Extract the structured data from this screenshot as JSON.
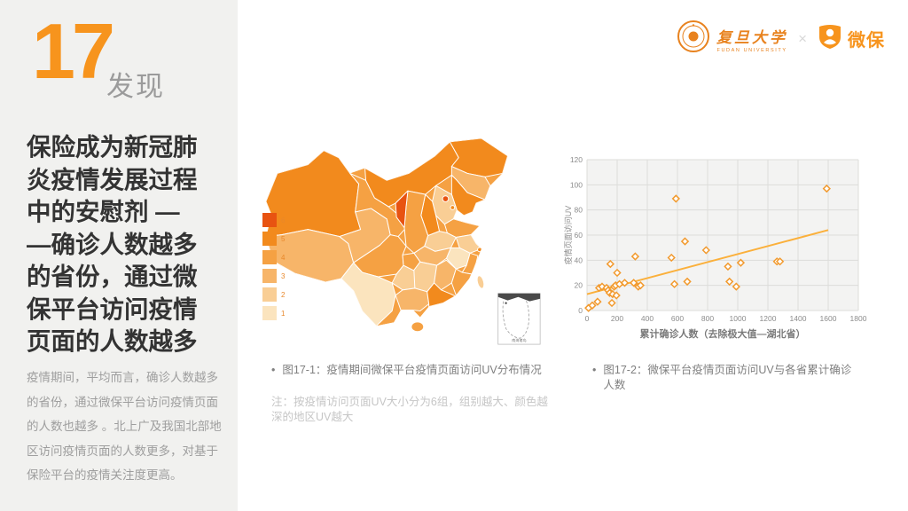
{
  "slide": {
    "number": "17",
    "number_label": "发现",
    "heading": "保险成为新冠肺\n炎疫情发展过程\n中的安慰剂 —\n—确诊人数越多\n的省份，通过微\n保平台访问疫情\n页面的人数越多",
    "body": "疫情期间，平均而言，确诊人数越多的省份，通过微保平台访问疫情页面的人数也越多 。北上广及我国北部地区访问疫情页面的人数更多，对基于保险平台的疫情关注度更高。"
  },
  "header": {
    "fudan_logo_text": "复旦大学",
    "fudan_logo_subtext": "FUDAN UNIVERSITY",
    "separator": "×",
    "wesure_logo_text": "微保"
  },
  "map": {
    "legend": {
      "labels": [
        "6",
        "5",
        "4",
        "3",
        "2",
        "1"
      ]
    },
    "scale_colors": [
      "#FBE4BE",
      "#F9CE95",
      "#F7B569",
      "#F5A143",
      "#F28A1D",
      "#E85311"
    ],
    "inset_label": "南海诸岛",
    "caption": "图17-1：疫情期间微保平台疫情页面访问UV分布情况",
    "note": "注：按疫情访问页面UV大小分为6组，组别越大、颜色越深的地区UV越大",
    "regions": [
      {
        "id": "xinjiang",
        "group": 5
      },
      {
        "id": "tibet",
        "group": 3
      },
      {
        "id": "qinghai",
        "group": 3
      },
      {
        "id": "gansu",
        "group": 4
      },
      {
        "id": "neimenggu",
        "group": 5
      },
      {
        "id": "heilongjiang",
        "group": 5
      },
      {
        "id": "jilin",
        "group": 3
      },
      {
        "id": "liaoning",
        "group": 5
      },
      {
        "id": "hebei",
        "group": 2
      },
      {
        "id": "beijing",
        "group": 6
      },
      {
        "id": "tianjin",
        "group": 5
      },
      {
        "id": "shanxi",
        "group": 5
      },
      {
        "id": "shandong",
        "group": 4
      },
      {
        "id": "henan",
        "group": 2
      },
      {
        "id": "jiangsu",
        "group": 2
      },
      {
        "id": "anhui",
        "group": 1
      },
      {
        "id": "shanghai",
        "group": 5
      },
      {
        "id": "zhejiang",
        "group": 4
      },
      {
        "id": "hubei",
        "group": 3
      },
      {
        "id": "chongqing",
        "group": 4
      },
      {
        "id": "sichuan",
        "group": 4
      },
      {
        "id": "shaanxi",
        "group": 4
      },
      {
        "id": "ningxia",
        "group": 6
      },
      {
        "id": "hunan",
        "group": 2
      },
      {
        "id": "jiangxi",
        "group": 3
      },
      {
        "id": "fujian",
        "group": 4
      },
      {
        "id": "guizhou",
        "group": 2
      },
      {
        "id": "yunnan",
        "group": 1
      },
      {
        "id": "guangxi",
        "group": 3
      },
      {
        "id": "guangdong",
        "group": 5
      },
      {
        "id": "hainan",
        "group": 4
      },
      {
        "id": "taiwan",
        "group": 2
      }
    ]
  },
  "chart_data": {
    "type": "scatter",
    "caption": "图17-2：微保平台疫情页面访问UV与各省累计确诊人数",
    "xlabel": "累计确诊人数（去除极大值—湖北省）",
    "ylabel": "疫情页面访问UV",
    "xlim": [
      0,
      1800
    ],
    "ylim": [
      0,
      120
    ],
    "xticks": [
      0,
      200,
      400,
      600,
      800,
      1000,
      1200,
      1400,
      1600,
      1800
    ],
    "yticks": [
      0,
      20,
      40,
      60,
      80,
      100,
      120
    ],
    "grid": true,
    "marker": "diamond-outline",
    "marker_color": "#F29A2E",
    "trend_color": "#FBB03B",
    "plot_bg": "#F3F3F2",
    "grid_color": "#DCDCDA",
    "points": [
      [
        10,
        2
      ],
      [
        35,
        4
      ],
      [
        70,
        7
      ],
      [
        80,
        18
      ],
      [
        100,
        19
      ],
      [
        130,
        18
      ],
      [
        140,
        16
      ],
      [
        150,
        14
      ],
      [
        155,
        37
      ],
      [
        165,
        6
      ],
      [
        170,
        13
      ],
      [
        180,
        19
      ],
      [
        190,
        20
      ],
      [
        195,
        12
      ],
      [
        200,
        30
      ],
      [
        215,
        21
      ],
      [
        250,
        22
      ],
      [
        310,
        22
      ],
      [
        320,
        43
      ],
      [
        340,
        19
      ],
      [
        355,
        20
      ],
      [
        560,
        42
      ],
      [
        580,
        21
      ],
      [
        590,
        89
      ],
      [
        650,
        55
      ],
      [
        665,
        23
      ],
      [
        790,
        48
      ],
      [
        935,
        35
      ],
      [
        945,
        23
      ],
      [
        990,
        19
      ],
      [
        1020,
        38
      ],
      [
        1260,
        39
      ],
      [
        1280,
        39
      ],
      [
        1590,
        97
      ]
    ],
    "trendline": {
      "x1": 0,
      "y1": 13,
      "x2": 1600,
      "y2": 64
    }
  }
}
